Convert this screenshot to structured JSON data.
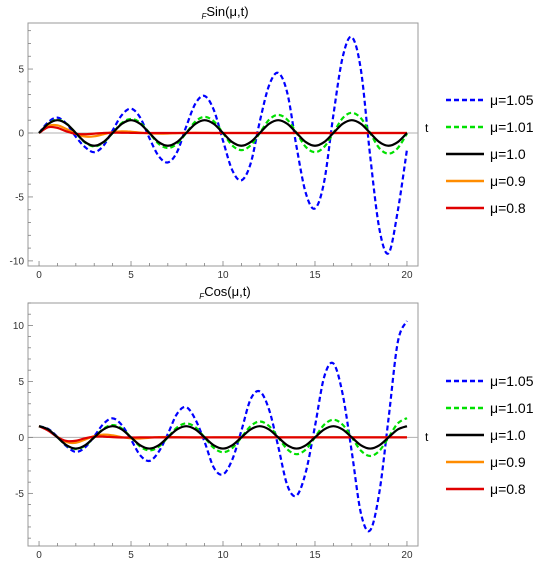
{
  "chart_data": [
    {
      "type": "line",
      "title_sub": "F",
      "title_main": "Sin(μ,t)",
      "xlabel": "t",
      "ylabel": "",
      "xlim": [
        -0.6,
        20.6
      ],
      "ylim": [
        -10.4,
        8.6
      ],
      "xticks": [
        0,
        5,
        10,
        15,
        20
      ],
      "yticks": [
        -10,
        -5,
        0,
        5
      ],
      "grid": false,
      "legend_position": "right",
      "series": [
        {
          "name": "μ=1.05",
          "mu": 1.05,
          "color": "#0000ff",
          "dash": true,
          "x": [
            0,
            0.5,
            1,
            1.5,
            2,
            2.5,
            3,
            3.5,
            4,
            4.5,
            5,
            5.5,
            6,
            6.5,
            7,
            7.5,
            8,
            8.5,
            9,
            9.5,
            10,
            10.5,
            11,
            11.5,
            12,
            12.5,
            13,
            13.5,
            14,
            14.5,
            15,
            15.5,
            16,
            16.5,
            17,
            17.5,
            18,
            18.5,
            19,
            19.5,
            20
          ],
          "values": [
            0,
            0.85,
            1.2,
            0.7,
            -0.3,
            -1.1,
            -1.5,
            -1.0,
            0.2,
            1.4,
            1.9,
            1.2,
            -0.4,
            -1.8,
            -2.3,
            -1.5,
            0.5,
            2.3,
            2.9,
            1.8,
            -0.6,
            -2.9,
            -3.7,
            -2.4,
            0.9,
            3.7,
            4.7,
            3.1,
            -1.1,
            -4.7,
            -5.9,
            -3.8,
            1.4,
            5.9,
            7.5,
            4.9,
            -1.8,
            -7.5,
            -9.4,
            -6.1,
            -1.3
          ]
        },
        {
          "name": "μ=1.01",
          "mu": 1.01,
          "color": "#00e000",
          "dash": true,
          "x": [
            0,
            0.5,
            1,
            1.5,
            2,
            2.5,
            3,
            3.5,
            4,
            4.5,
            5,
            5.5,
            6,
            6.5,
            7,
            7.5,
            8,
            8.5,
            9,
            9.5,
            10,
            10.5,
            11,
            11.5,
            12,
            12.5,
            13,
            13.5,
            14,
            14.5,
            15,
            15.5,
            16,
            16.5,
            17,
            17.5,
            18,
            18.5,
            19,
            19.5,
            20
          ],
          "values": [
            0,
            0.72,
            1.03,
            0.72,
            0,
            -0.74,
            -1.05,
            -0.75,
            0,
            0.78,
            1.1,
            0.8,
            0,
            -0.84,
            -1.18,
            -0.85,
            0,
            0.9,
            1.26,
            0.91,
            0,
            -0.97,
            -1.34,
            -0.97,
            0,
            1.03,
            1.42,
            1.03,
            0,
            -1.09,
            -1.5,
            -1.09,
            0,
            1.15,
            1.58,
            1.15,
            0,
            -1.19,
            -1.62,
            -1.18,
            -0.05
          ]
        },
        {
          "name": "μ=1.0",
          "mu": 1.0,
          "color": "#000000",
          "dash": false,
          "x": [
            0,
            0.5,
            1,
            1.5,
            2,
            2.5,
            3,
            3.5,
            4,
            4.5,
            5,
            5.5,
            6,
            6.5,
            7,
            7.5,
            8,
            8.5,
            9,
            9.5,
            10,
            10.5,
            11,
            11.5,
            12,
            12.5,
            13,
            13.5,
            14,
            14.5,
            15,
            15.5,
            16,
            16.5,
            17,
            17.5,
            18,
            18.5,
            19,
            19.5,
            20
          ],
          "values": [
            0,
            0.71,
            1,
            0.71,
            0,
            -0.71,
            -1,
            -0.71,
            0,
            0.71,
            1,
            0.71,
            0,
            -0.71,
            -1,
            -0.71,
            0,
            0.71,
            1,
            0.71,
            0,
            -0.71,
            -1,
            -0.71,
            0,
            0.71,
            1,
            0.71,
            0,
            -0.71,
            -1,
            -0.71,
            0,
            0.71,
            1,
            0.71,
            0,
            -0.71,
            -1,
            -0.71,
            0
          ]
        },
        {
          "name": "μ=0.9",
          "mu": 0.9,
          "color": "#ff8c00",
          "dash": false,
          "x": [
            0,
            0.5,
            1,
            1.5,
            2,
            2.5,
            3,
            3.5,
            4,
            4.5,
            5,
            5.5,
            6,
            6.5,
            7,
            7.5,
            8,
            8.5,
            9,
            9.5,
            10,
            10.5,
            11,
            11.5,
            12,
            12.5,
            13,
            13.5,
            14,
            14.5,
            15,
            15.5,
            16,
            16.5,
            17,
            17.5,
            18,
            18.5,
            19,
            19.5,
            20
          ],
          "values": [
            0,
            0.55,
            0.6,
            0.3,
            -0.08,
            -0.28,
            -0.26,
            -0.1,
            0.06,
            0.13,
            0.1,
            0.03,
            -0.03,
            -0.05,
            -0.04,
            -0.01,
            0.01,
            0.02,
            0.01,
            0,
            0,
            0,
            0,
            0,
            0,
            0,
            0,
            0,
            0,
            0,
            0,
            0,
            0,
            0,
            0,
            0,
            0,
            0,
            0,
            0,
            0
          ]
        },
        {
          "name": "μ=0.8",
          "mu": 0.8,
          "color": "#e00000",
          "dash": false,
          "x": [
            0,
            0.5,
            1,
            1.5,
            2,
            2.5,
            3,
            3.5,
            4,
            4.5,
            5,
            5.5,
            6,
            6.5,
            7,
            7.5,
            8,
            8.5,
            9,
            9.5,
            10,
            10.5,
            11,
            11.5,
            12,
            12.5,
            13,
            13.5,
            14,
            14.5,
            15,
            15.5,
            16,
            16.5,
            17,
            17.5,
            18,
            18.5,
            19,
            19.5,
            20
          ],
          "values": [
            0,
            0.45,
            0.4,
            0.12,
            -0.07,
            -0.1,
            -0.05,
            0,
            0.02,
            0.02,
            0.01,
            0,
            0,
            0,
            0,
            0,
            0,
            0,
            0,
            0,
            0,
            0,
            0,
            0,
            0,
            0,
            0,
            0,
            0,
            0,
            0,
            0,
            0,
            0,
            0,
            0,
            0,
            0,
            0,
            0,
            0
          ]
        }
      ]
    },
    {
      "type": "line",
      "title_sub": "F",
      "title_main": "Cos(μ,t)",
      "xlabel": "t",
      "ylabel": "",
      "xlim": [
        -0.6,
        20.6
      ],
      "ylim": [
        -9.7,
        12.0
      ],
      "xticks": [
        0,
        5,
        10,
        15,
        20
      ],
      "yticks": [
        -5,
        0,
        5,
        10
      ],
      "grid": false,
      "legend_position": "right",
      "series": [
        {
          "name": "μ=1.05",
          "mu": 1.05,
          "color": "#0000ff",
          "dash": true,
          "x": [
            0,
            0.5,
            1,
            1.5,
            2,
            2.5,
            3,
            3.5,
            4,
            4.5,
            5,
            5.5,
            6,
            6.5,
            7,
            7.5,
            8,
            8.5,
            9,
            9.5,
            10,
            10.5,
            11,
            11.5,
            12,
            12.5,
            13,
            13.5,
            14,
            14.5,
            15,
            15.5,
            16,
            16.5,
            17,
            17.5,
            18,
            18.5,
            19,
            19.5,
            20
          ],
          "values": [
            1,
            0.75,
            0.05,
            -0.8,
            -1.3,
            -0.9,
            0.1,
            1.2,
            1.7,
            1.1,
            -0.2,
            -1.6,
            -2.1,
            -1.3,
            0.3,
            2.1,
            2.7,
            1.6,
            -0.4,
            -2.7,
            -3.3,
            -2.0,
            0.6,
            3.4,
            4.1,
            2.5,
            -0.8,
            -4.3,
            -5.2,
            -3.1,
            1.0,
            5.4,
            6.6,
            3.9,
            -1.3,
            -6.8,
            -8.3,
            -4.9,
            1.7,
            8.5,
            10.4
          ]
        },
        {
          "name": "μ=1.01",
          "mu": 1.01,
          "color": "#00e000",
          "dash": true,
          "x": [
            0,
            0.5,
            1,
            1.5,
            2,
            2.5,
            3,
            3.5,
            4,
            4.5,
            5,
            5.5,
            6,
            6.5,
            7,
            7.5,
            8,
            8.5,
            9,
            9.5,
            10,
            10.5,
            11,
            11.5,
            12,
            12.5,
            13,
            13.5,
            14,
            14.5,
            15,
            15.5,
            16,
            16.5,
            17,
            17.5,
            18,
            18.5,
            19,
            19.5,
            20
          ],
          "values": [
            1,
            0.71,
            0,
            -0.72,
            -1.04,
            -0.75,
            0,
            0.77,
            1.1,
            0.79,
            0,
            -0.82,
            -1.17,
            -0.84,
            0,
            0.88,
            1.25,
            0.9,
            0,
            -0.94,
            -1.33,
            -0.96,
            0,
            1.0,
            1.42,
            1.02,
            0,
            -1.07,
            -1.5,
            -1.08,
            0,
            1.13,
            1.58,
            1.14,
            0,
            -1.19,
            -1.66,
            -1.2,
            0,
            1.25,
            1.72
          ]
        },
        {
          "name": "μ=1.0",
          "mu": 1.0,
          "color": "#000000",
          "dash": false,
          "x": [
            0,
            0.5,
            1,
            1.5,
            2,
            2.5,
            3,
            3.5,
            4,
            4.5,
            5,
            5.5,
            6,
            6.5,
            7,
            7.5,
            8,
            8.5,
            9,
            9.5,
            10,
            10.5,
            11,
            11.5,
            12,
            12.5,
            13,
            13.5,
            14,
            14.5,
            15,
            15.5,
            16,
            16.5,
            17,
            17.5,
            18,
            18.5,
            19,
            19.5,
            20
          ],
          "values": [
            1,
            0.71,
            0,
            -0.71,
            -1,
            -0.71,
            0,
            0.71,
            1,
            0.71,
            0,
            -0.71,
            -1,
            -0.71,
            0,
            0.71,
            1,
            0.71,
            0,
            -0.71,
            -1,
            -0.71,
            0,
            0.71,
            1,
            0.71,
            0,
            -0.71,
            -1,
            -0.71,
            0,
            0.71,
            1,
            0.71,
            0,
            -0.71,
            -1,
            -0.71,
            0,
            0.71,
            1
          ]
        },
        {
          "name": "μ=0.9",
          "mu": 0.9,
          "color": "#ff8c00",
          "dash": false,
          "x": [
            0,
            0.5,
            1,
            1.5,
            2,
            2.5,
            3,
            3.5,
            4,
            4.5,
            5,
            5.5,
            6,
            6.5,
            7,
            7.5,
            8,
            8.5,
            9,
            9.5,
            10,
            10.5,
            11,
            11.5,
            12,
            12.5,
            13,
            13.5,
            14,
            14.5,
            15,
            15.5,
            16,
            16.5,
            17,
            17.5,
            18,
            18.5,
            19,
            19.5,
            20
          ],
          "values": [
            1,
            0.65,
            0.05,
            -0.42,
            -0.48,
            -0.2,
            0.12,
            0.25,
            0.18,
            0.02,
            -0.09,
            -0.1,
            -0.04,
            0.02,
            0.04,
            0.02,
            0,
            -0.01,
            -0.01,
            0,
            0,
            0,
            0,
            0,
            0,
            0,
            0,
            0,
            0,
            0,
            0,
            0,
            0,
            0,
            0,
            0,
            0,
            0,
            0,
            0,
            0
          ]
        },
        {
          "name": "μ=0.8",
          "mu": 0.8,
          "color": "#e00000",
          "dash": false,
          "x": [
            0,
            0.5,
            1,
            1.5,
            2,
            2.5,
            3,
            3.5,
            4,
            4.5,
            5,
            5.5,
            6,
            6.5,
            7,
            7.5,
            8,
            8.5,
            9,
            9.5,
            10,
            10.5,
            11,
            11.5,
            12,
            12.5,
            13,
            13.5,
            14,
            14.5,
            15,
            15.5,
            16,
            16.5,
            17,
            17.5,
            18,
            18.5,
            19,
            19.5,
            20
          ],
          "values": [
            1,
            0.6,
            0.02,
            -0.32,
            -0.3,
            -0.08,
            0.06,
            0.07,
            0.02,
            -0.01,
            -0.01,
            0,
            0,
            0,
            0,
            0,
            0,
            0,
            0,
            0,
            0,
            0,
            0,
            0,
            0,
            0,
            0,
            0,
            0,
            0,
            0,
            0,
            0,
            0,
            0,
            0,
            0,
            0,
            0,
            0,
            0
          ]
        }
      ]
    }
  ]
}
